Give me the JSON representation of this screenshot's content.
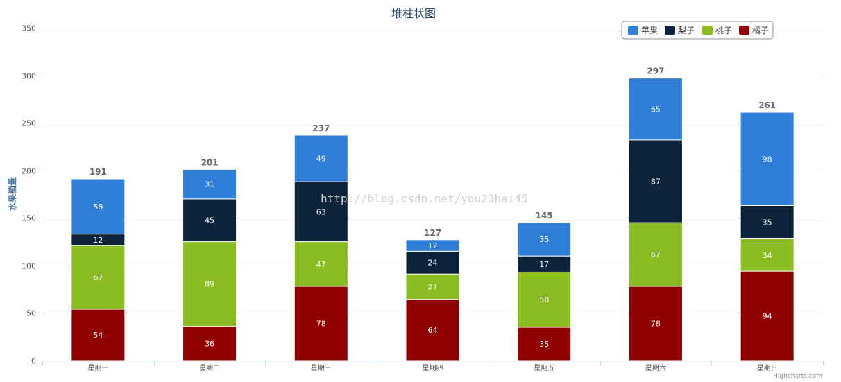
{
  "chart_data": {
    "type": "bar",
    "stacked": true,
    "title": "堆柱状图",
    "xlabel": "",
    "ylabel": "水果销量",
    "ylim": [
      0,
      350
    ],
    "yticks": [
      0,
      50,
      100,
      150,
      200,
      250,
      300,
      350
    ],
    "grid": true,
    "legend_position": "top-right",
    "categories": [
      "星期一",
      "星期二",
      "星期三",
      "星期四",
      "星期五",
      "星期六",
      "星期日"
    ],
    "series": [
      {
        "name": "苹果",
        "color": "#2f7ed8",
        "values": [
          58,
          31,
          49,
          12,
          35,
          65,
          98
        ]
      },
      {
        "name": "梨子",
        "color": "#0d233a",
        "values": [
          12,
          45,
          63,
          24,
          17,
          87,
          35
        ]
      },
      {
        "name": "桃子",
        "color": "#8bbc21",
        "values": [
          67,
          89,
          47,
          27,
          58,
          67,
          34
        ]
      },
      {
        "name": "橘子",
        "color": "#910000",
        "values": [
          54,
          36,
          78,
          64,
          35,
          78,
          94
        ]
      }
    ],
    "totals": [
      191,
      201,
      237,
      127,
      145,
      297,
      261
    ]
  },
  "credits": "Highcharts.com",
  "watermark": "http://blog.csdn.net/you23hai45"
}
